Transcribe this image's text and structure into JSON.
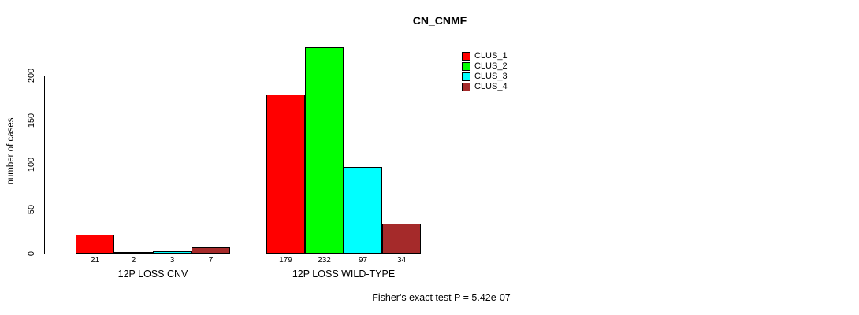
{
  "chart_data": {
    "type": "bar",
    "title": "CN_CNMF",
    "xlabel": "",
    "ylabel": "number of cases",
    "ylim": [
      0,
      235
    ],
    "yticks": [
      0,
      50,
      100,
      150,
      200
    ],
    "grid": false,
    "legend_position": "top-right",
    "categories": [
      "12P LOSS CNV",
      "12P LOSS WILD-TYPE"
    ],
    "series": [
      {
        "name": "CLUS_1",
        "color": "#ff0000",
        "values": [
          21,
          179
        ]
      },
      {
        "name": "CLUS_2",
        "color": "#00ff00",
        "values": [
          2,
          232
        ]
      },
      {
        "name": "CLUS_3",
        "color": "#00ffff",
        "values": [
          3,
          97
        ]
      },
      {
        "name": "CLUS_4",
        "color": "#a52a2a",
        "values": [
          7,
          34
        ]
      }
    ],
    "bar_value_labels": {
      "12P LOSS CNV": [
        21,
        2,
        3,
        7
      ],
      "12P LOSS WILD-TYPE": [
        179,
        232,
        97,
        34
      ]
    },
    "annotation": "Fisher's exact test P = 5.42e-07"
  }
}
